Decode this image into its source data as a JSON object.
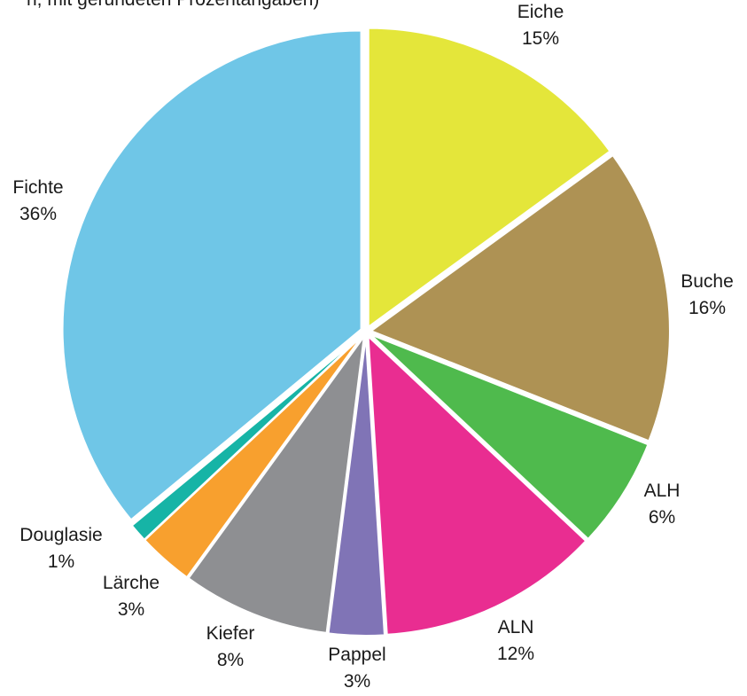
{
  "chart_data": {
    "type": "pie",
    "subtitle": "n, mit gerundeten Prozentangaben)",
    "slices": [
      {
        "label": "Eiche",
        "percent_label": "15%",
        "value": 15,
        "color": "#e4e63a"
      },
      {
        "label": "Buche",
        "percent_label": "16%",
        "value": 16,
        "color": "#ae9254"
      },
      {
        "label": "ALH",
        "percent_label": "6%",
        "value": 6,
        "color": "#4fba4d"
      },
      {
        "label": "ALN",
        "percent_label": "12%",
        "value": 12,
        "color": "#e92d91"
      },
      {
        "label": "Pappel",
        "percent_label": "3%",
        "value": 3,
        "color": "#8074b6"
      },
      {
        "label": "Kiefer",
        "percent_label": "8%",
        "value": 8,
        "color": "#8e8f92"
      },
      {
        "label": "Lärche",
        "percent_label": "3%",
        "value": 3,
        "color": "#f8a02e"
      },
      {
        "label": "Douglasie",
        "percent_label": "1%",
        "value": 1,
        "color": "#16b4a6"
      },
      {
        "label": "Fichte",
        "percent_label": "36%",
        "value": 36,
        "color": "#6fc6e7"
      }
    ]
  }
}
